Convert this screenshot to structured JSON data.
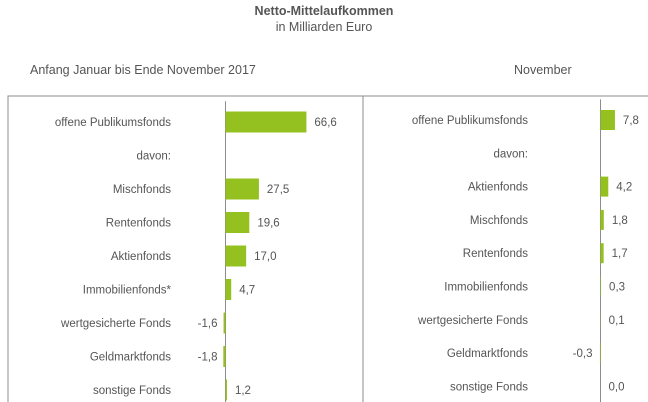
{
  "title": "Netto-Mittelaufkommen",
  "subtitle": "in Milliarden Euro",
  "colors": {
    "bar": "#94c11f",
    "axis": "#8c8c8c",
    "border": "#8c8c8c",
    "text": "#555555"
  },
  "chart_data": [
    {
      "type": "bar",
      "orientation": "horizontal",
      "panel_label": "Anfang Januar  bis Ende November  2017",
      "categories": [
        "offene Publikumsfonds",
        "davon:",
        "Mischfonds",
        "Rentenfonds",
        "Aktienfonds",
        "Immobilienfonds*",
        "wertgesicherte Fonds",
        "Geldmarktfonds",
        "sonstige Fonds"
      ],
      "values": [
        66.6,
        null,
        27.5,
        19.6,
        17.0,
        4.7,
        -1.6,
        -1.8,
        1.2
      ],
      "labels": [
        "66,6",
        "",
        "27,5",
        "19,6",
        "17,0",
        "4,7",
        "-1,6",
        "-1,8",
        "1,2"
      ]
    },
    {
      "type": "bar",
      "orientation": "horizontal",
      "panel_label": "November",
      "categories": [
        "offene Publikumsfonds",
        "davon:",
        "Aktienfonds",
        "Mischfonds",
        "Rentenfonds",
        "Immobilienfonds",
        "wertgesicherte Fonds",
        "Geldmarktfonds",
        "sonstige Fonds"
      ],
      "values": [
        7.8,
        null,
        4.2,
        1.8,
        1.7,
        0.3,
        0.1,
        -0.3,
        0.0
      ],
      "labels": [
        "7,8",
        "",
        "4,2",
        "1,8",
        "1,7",
        "0,3",
        "0,1",
        "-0,3",
        "0,0"
      ]
    }
  ]
}
